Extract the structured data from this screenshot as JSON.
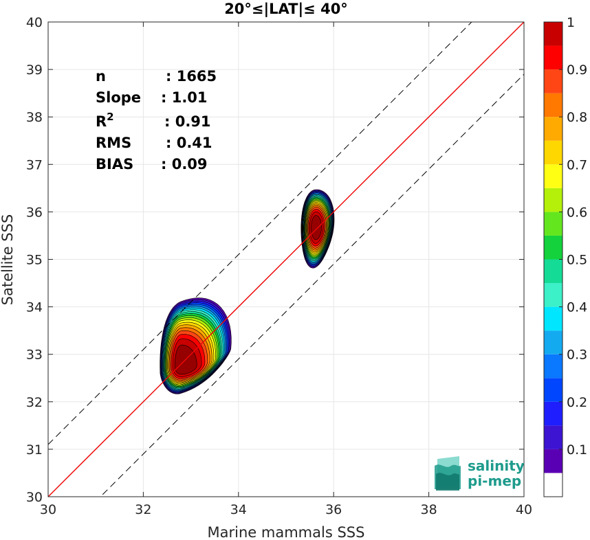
{
  "chart_data": {
    "type": "heatmap",
    "subtype": "density-contour-scatter",
    "title": "20°≤|LAT|≤ 40°",
    "xlabel": "Marine mammals SSS",
    "ylabel": "Satellite SSS",
    "xlim": [
      30,
      40
    ],
    "ylim": [
      30,
      40
    ],
    "xticks": [
      30,
      32,
      34,
      36,
      38,
      40
    ],
    "yticks": [
      30,
      31,
      32,
      33,
      34,
      35,
      36,
      37,
      38,
      39,
      40
    ],
    "grid": true,
    "colorbar": {
      "range": [
        0,
        1
      ],
      "ticks": [
        0.1,
        0.2,
        0.3,
        0.4,
        0.5,
        0.6,
        0.7,
        0.8,
        0.9,
        1
      ],
      "tick_labels": [
        "0.1",
        "0.2",
        "0.3",
        "0.4",
        "0.5",
        "0.6",
        "0.7",
        "0.8",
        "0.9",
        "1"
      ],
      "levels": [
        0.05,
        0.1,
        0.15,
        0.2,
        0.25,
        0.3,
        0.35,
        0.4,
        0.45,
        0.5,
        0.55,
        0.6,
        0.65,
        0.7,
        0.75,
        0.8,
        0.85,
        0.9,
        0.95
      ],
      "colors": [
        "#ffffff",
        "#5a00b4",
        "#3c14d2",
        "#1e1eff",
        "#0046ff",
        "#0a78ff",
        "#14aaf0",
        "#00e6ff",
        "#3cf0c8",
        "#14dc96",
        "#14d23c",
        "#64e61e",
        "#b4f00a",
        "#ffff14",
        "#ffd700",
        "#ffaa00",
        "#ff7800",
        "#ff4614",
        "#ff0000",
        "#c80000",
        "#960000"
      ]
    },
    "density_clusters": [
      {
        "center": [
          32.8,
          32.75
        ],
        "x_extent": [
          32.35,
          33.85
        ],
        "y_extent": [
          32.2,
          34.2
        ],
        "peak": 1.0
      },
      {
        "center": [
          35.63,
          35.67
        ],
        "x_extent": [
          35.3,
          36.0
        ],
        "y_extent": [
          34.85,
          36.5
        ],
        "peak": 1.0
      }
    ],
    "lines": [
      {
        "name": "1:1 line",
        "color": "#555555",
        "style": "solid",
        "x": [
          30,
          40
        ],
        "y": [
          30,
          40
        ]
      },
      {
        "name": "regression",
        "color": "#ff0000",
        "style": "solid",
        "x": [
          30,
          40
        ],
        "y": [
          30.0,
          40.0
        ]
      },
      {
        "name": "upper bound",
        "color": "#000000",
        "style": "dashed",
        "x": [
          30,
          40
        ],
        "y": [
          31.1,
          41.1
        ]
      },
      {
        "name": "lower bound",
        "color": "#000000",
        "style": "dashed",
        "x": [
          30,
          40
        ],
        "y": [
          28.9,
          38.9
        ]
      }
    ],
    "stats": [
      {
        "name": "n",
        "value": ": 1665"
      },
      {
        "name": "Slope",
        "value": ": 1.01"
      },
      {
        "name": "R",
        "sup": "2",
        "value": ": 0.91"
      },
      {
        "name": "RMS",
        "value": ": 0.41"
      },
      {
        "name": "BIAS",
        "value": ": 0.09"
      }
    ]
  },
  "logo": {
    "line1": "salinity",
    "line2": "pi-mep",
    "color": "#1e9b8c"
  }
}
